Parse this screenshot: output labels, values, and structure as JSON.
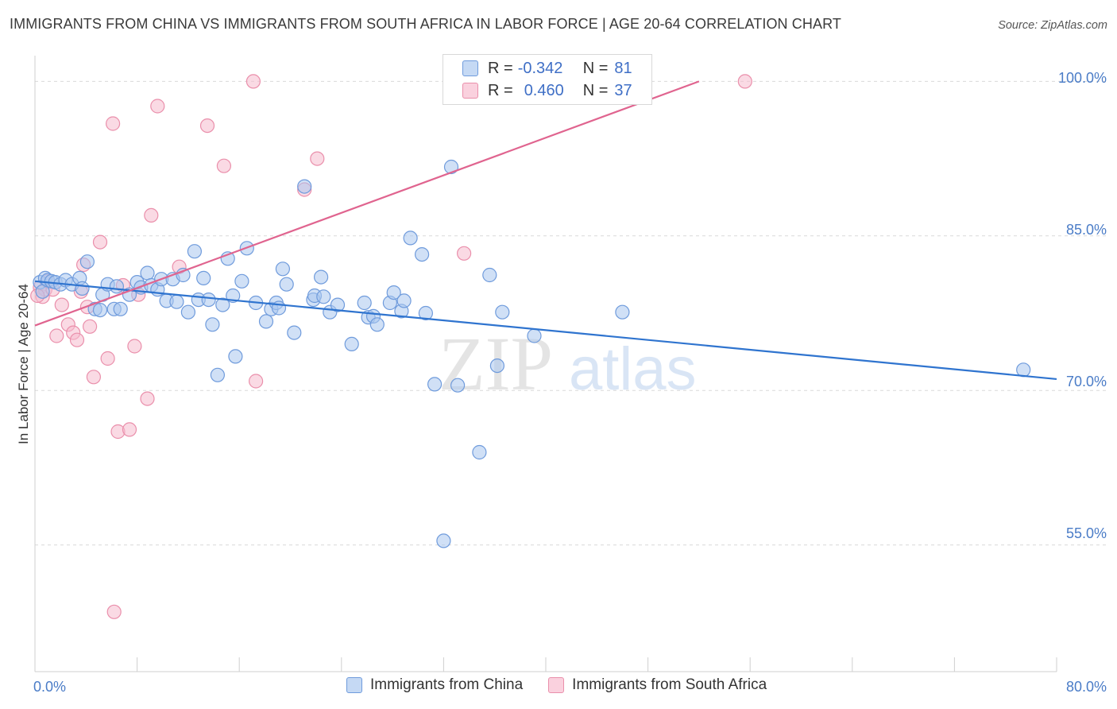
{
  "title": "IMMIGRANTS FROM CHINA VS IMMIGRANTS FROM SOUTH AFRICA IN LABOR FORCE | AGE 20-64 CORRELATION CHART",
  "source": "Source: ZipAtlas.com",
  "watermark": {
    "zip": "ZIP",
    "atlas": "atlas"
  },
  "colors": {
    "china_fill": "#a9c6ef",
    "china_stroke": "#6f9bdc",
    "china_line": "#2f74cf",
    "sa_fill": "#f6bccd",
    "sa_stroke": "#ea8fab",
    "sa_line": "#e0648f",
    "grid": "#d9d9d9",
    "tick_label": "#4a7cc7"
  },
  "stats": [
    {
      "r_label": "R =",
      "r_value": "-0.342",
      "n_label": "N =",
      "n_value": "81"
    },
    {
      "r_label": "R =",
      "r_value": "0.460",
      "n_label": "N =",
      "n_value": "37"
    }
  ],
  "chart_data": {
    "type": "scatter",
    "title": "IMMIGRANTS FROM CHINA VS IMMIGRANTS FROM SOUTH AFRICA IN LABOR FORCE | AGE 20-64 CORRELATION CHART",
    "xlabel": "",
    "ylabel": "In Labor Force | Age 20-64",
    "xlim": [
      0,
      80
    ],
    "ylim": [
      42.7,
      102.5
    ],
    "x_tick_labels": [
      "0.0%",
      "80.0%"
    ],
    "y_ticks": [
      100,
      85,
      70,
      55
    ],
    "y_tick_labels": [
      "100.0%",
      "85.0%",
      "70.0%",
      "55.0%"
    ],
    "legend": [
      "Immigrants from China",
      "Immigrants from South Africa"
    ],
    "series": [
      {
        "name": "Immigrants from China",
        "trend": {
          "x": [
            0,
            80
          ],
          "y": [
            80.6,
            71.1
          ]
        },
        "points": [
          [
            0.4,
            80.5
          ],
          [
            0.6,
            79.6
          ],
          [
            0.8,
            80.9
          ],
          [
            1.0,
            80.7
          ],
          [
            1.3,
            80.6
          ],
          [
            1.6,
            80.5
          ],
          [
            2.0,
            80.3
          ],
          [
            2.4,
            80.7
          ],
          [
            2.9,
            80.3
          ],
          [
            3.5,
            80.9
          ],
          [
            3.7,
            79.9
          ],
          [
            4.1,
            82.5
          ],
          [
            4.7,
            77.9
          ],
          [
            5.1,
            77.8
          ],
          [
            5.3,
            79.3
          ],
          [
            5.7,
            80.3
          ],
          [
            6.2,
            77.9
          ],
          [
            6.4,
            80.1
          ],
          [
            6.7,
            77.9
          ],
          [
            7.4,
            79.3
          ],
          [
            8.0,
            80.5
          ],
          [
            8.3,
            80.0
          ],
          [
            8.8,
            81.4
          ],
          [
            9.1,
            80.2
          ],
          [
            9.6,
            79.8
          ],
          [
            9.9,
            80.8
          ],
          [
            10.3,
            78.7
          ],
          [
            10.8,
            80.8
          ],
          [
            11.1,
            78.6
          ],
          [
            11.6,
            81.2
          ],
          [
            12.0,
            77.6
          ],
          [
            12.5,
            83.5
          ],
          [
            12.8,
            78.8
          ],
          [
            13.2,
            80.9
          ],
          [
            13.6,
            78.8
          ],
          [
            13.9,
            76.4
          ],
          [
            14.3,
            71.5
          ],
          [
            14.7,
            78.3
          ],
          [
            15.1,
            82.8
          ],
          [
            15.5,
            79.2
          ],
          [
            15.7,
            73.3
          ],
          [
            16.2,
            80.6
          ],
          [
            16.6,
            83.8
          ],
          [
            17.3,
            78.5
          ],
          [
            18.1,
            76.7
          ],
          [
            18.5,
            77.9
          ],
          [
            18.9,
            78.5
          ],
          [
            19.1,
            78.0
          ],
          [
            19.4,
            81.8
          ],
          [
            19.7,
            80.3
          ],
          [
            20.3,
            75.6
          ],
          [
            21.1,
            89.8
          ],
          [
            21.8,
            78.8
          ],
          [
            21.9,
            79.2
          ],
          [
            22.4,
            81.0
          ],
          [
            22.6,
            79.1
          ],
          [
            23.1,
            77.6
          ],
          [
            23.7,
            78.3
          ],
          [
            24.8,
            74.5
          ],
          [
            25.8,
            78.5
          ],
          [
            26.1,
            77.1
          ],
          [
            26.5,
            77.2
          ],
          [
            26.8,
            76.4
          ],
          [
            27.8,
            78.5
          ],
          [
            28.1,
            79.5
          ],
          [
            28.7,
            77.7
          ],
          [
            28.9,
            78.7
          ],
          [
            29.4,
            84.8
          ],
          [
            30.3,
            83.2
          ],
          [
            30.6,
            77.5
          ],
          [
            31.3,
            70.6
          ],
          [
            32.6,
            91.7
          ],
          [
            33.1,
            70.5
          ],
          [
            34.8,
            64.0
          ],
          [
            35.6,
            81.2
          ],
          [
            36.2,
            72.4
          ],
          [
            36.6,
            77.6
          ],
          [
            39.1,
            75.3
          ],
          [
            46.0,
            77.6
          ],
          [
            77.4,
            72.0
          ],
          [
            32.0,
            55.4
          ]
        ]
      },
      {
        "name": "Immigrants from South Africa",
        "trend": {
          "x": [
            0,
            52
          ],
          "y": [
            76.3,
            100.0
          ]
        },
        "points": [
          [
            0.4,
            80.0
          ],
          [
            0.6,
            79.1
          ],
          [
            0.8,
            79.8
          ],
          [
            1.0,
            80.6
          ],
          [
            1.4,
            79.8
          ],
          [
            1.7,
            75.3
          ],
          [
            2.1,
            78.3
          ],
          [
            2.6,
            76.4
          ],
          [
            3.0,
            75.6
          ],
          [
            3.3,
            74.9
          ],
          [
            3.6,
            79.6
          ],
          [
            3.8,
            82.2
          ],
          [
            4.1,
            78.1
          ],
          [
            4.3,
            76.2
          ],
          [
            4.6,
            71.3
          ],
          [
            5.1,
            84.4
          ],
          [
            5.7,
            73.1
          ],
          [
            6.1,
            95.9
          ],
          [
            6.5,
            66.0
          ],
          [
            7.4,
            66.2
          ],
          [
            7.8,
            74.3
          ],
          [
            8.1,
            79.3
          ],
          [
            8.8,
            69.2
          ],
          [
            9.1,
            87.0
          ],
          [
            9.6,
            97.6
          ],
          [
            11.3,
            82.0
          ],
          [
            13.5,
            95.7
          ],
          [
            14.8,
            91.8
          ],
          [
            17.1,
            100.0
          ],
          [
            17.3,
            70.9
          ],
          [
            21.1,
            89.5
          ],
          [
            22.1,
            92.5
          ],
          [
            33.6,
            83.3
          ],
          [
            55.6,
            100.0
          ],
          [
            6.2,
            48.5
          ],
          [
            6.9,
            80.2
          ],
          [
            0.2,
            79.2
          ]
        ]
      }
    ]
  },
  "axis_labels": {
    "y_title": "In Labor Force | Age 20-64",
    "x_left": "0.0%",
    "x_right": "80.0%",
    "y_ticks": [
      "100.0%",
      "85.0%",
      "70.0%",
      "55.0%"
    ]
  },
  "legend_bottom": [
    {
      "label": "Immigrants from China"
    },
    {
      "label": "Immigrants from South Africa"
    }
  ]
}
